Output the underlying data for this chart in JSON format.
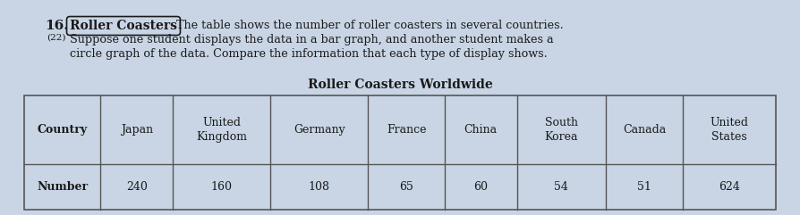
{
  "problem_number": "16.",
  "problem_number_sub": "(22)",
  "label_title": "Roller Coasters",
  "line1": "The table shows the number of roller coasters in several countries.",
  "line2": "Suppose one student displays the data in a bar graph, and another student makes a",
  "line3": "circle graph of the data. Compare the information that each type of display shows.",
  "table_title": "Roller Coasters Worldwide",
  "columns": [
    "Country",
    "Japan",
    "United\nKingdom",
    "Germany",
    "France",
    "China",
    "South\nKorea",
    "Canada",
    "United\nStates"
  ],
  "row_label": "Number",
  "values": [
    240,
    160,
    108,
    65,
    60,
    54,
    51,
    624
  ],
  "background_color": "#c9d5e5",
  "text_color": "#1a1a1a",
  "border_color": "#555555",
  "font_size_intro": 9.2,
  "font_size_table": 9.0,
  "font_size_title": 10.0,
  "fig_width": 8.94,
  "fig_height": 2.41
}
